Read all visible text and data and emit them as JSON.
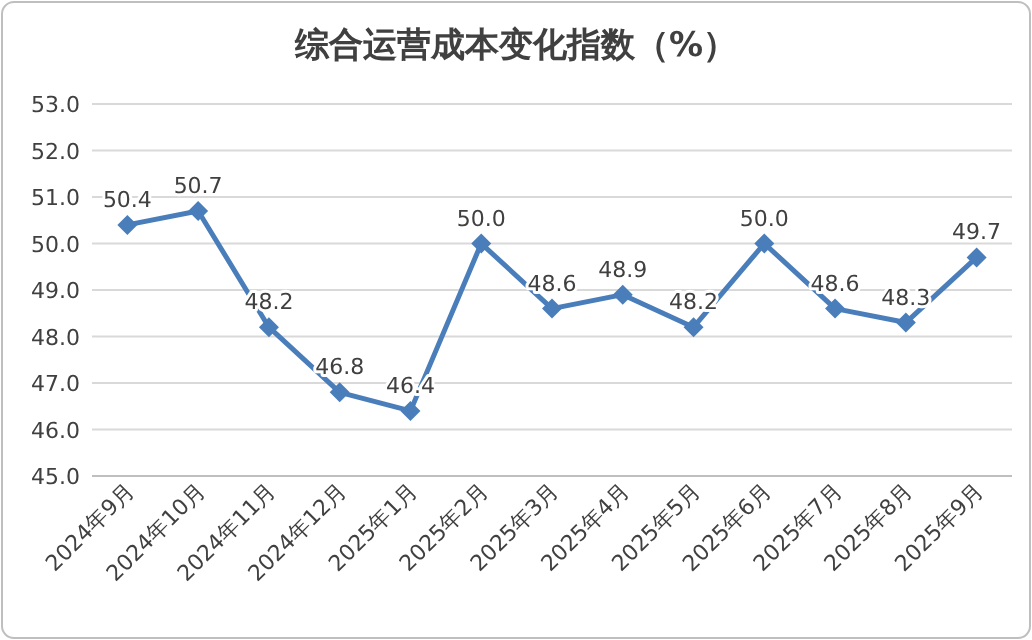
{
  "chart_data": {
    "type": "line",
    "title": "综合运营成本变化指数（%）",
    "categories": [
      "2024年9月",
      "2024年10月",
      "2024年11月",
      "2024年12月",
      "2025年1月",
      "2025年2月",
      "2025年3月",
      "2025年4月",
      "2025年5月",
      "2025年6月",
      "2025年7月",
      "2025年8月",
      "2025年9月"
    ],
    "series": [
      {
        "color": "#4a7ebb",
        "values": [
          50.4,
          50.7,
          48.2,
          46.8,
          46.4,
          50.0,
          48.6,
          48.9,
          48.2,
          50.0,
          48.6,
          48.3,
          49.7
        ],
        "value_labels": [
          "50.4",
          "50.7",
          "48.2",
          "46.8",
          "46.4",
          "50.0",
          "48.6",
          "48.9",
          "48.2",
          "50.0",
          "48.6",
          "48.3",
          "49.7"
        ]
      }
    ],
    "ylim": [
      45,
      53
    ],
    "yticks": [
      {
        "value": 45,
        "label": "45.0"
      },
      {
        "value": 46,
        "label": "46.0"
      },
      {
        "value": 47,
        "label": "47.0"
      },
      {
        "value": 48,
        "label": "48.0"
      },
      {
        "value": 49,
        "label": "49.0"
      },
      {
        "value": 50,
        "label": "50.0"
      },
      {
        "value": 51,
        "label": "51.0"
      },
      {
        "value": 52,
        "label": "52.0"
      },
      {
        "value": 53,
        "label": "53.0"
      }
    ],
    "grid": "y",
    "marker": "diamond",
    "line_style": "solid"
  }
}
